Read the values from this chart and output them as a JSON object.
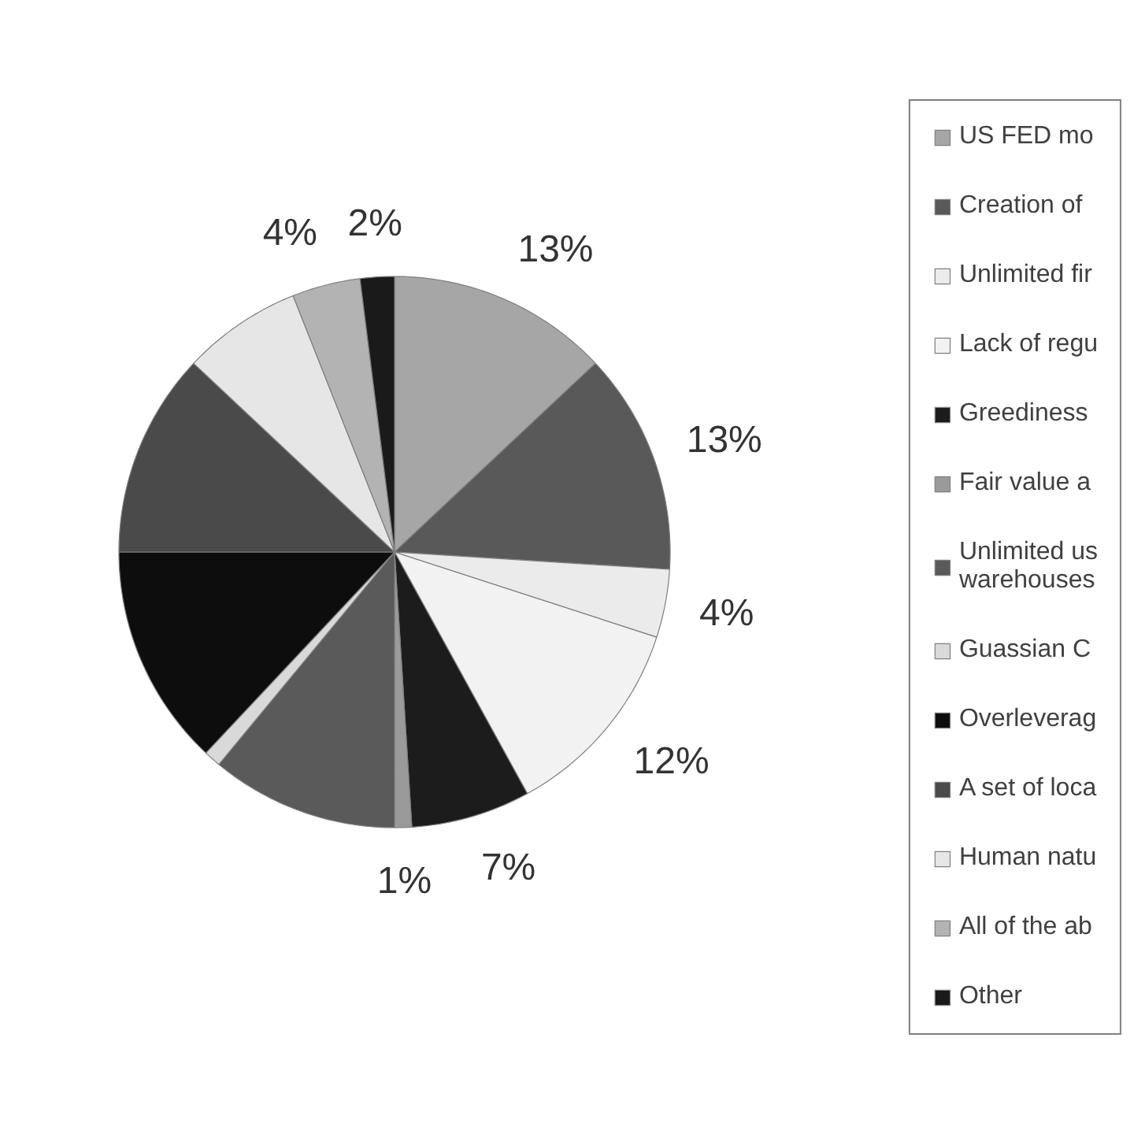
{
  "chart_data": {
    "type": "pie",
    "categories": [
      "US FED mo",
      "Creation of",
      "Unlimited fir",
      "Lack of regu",
      "Greediness",
      "Fair value a",
      "Unlimited us\nwarehouses",
      "Guassian C",
      "Overleverag",
      "A set of loca",
      "Human natu",
      "All of the ab",
      "Other"
    ],
    "values": [
      13,
      13,
      4,
      12,
      7,
      1,
      11,
      1,
      13,
      12,
      7,
      4,
      2
    ],
    "colors": [
      "#a6a6a6",
      "#595959",
      "#ebebeb",
      "#f2f2f2",
      "#1c1c1c",
      "#9a9a9a",
      "#5a5a5a",
      "#d9d9d9",
      "#0d0d0d",
      "#4a4a4a",
      "#e6e6e6",
      "#b3b3b3",
      "#1a1a1a"
    ],
    "value_labels": [
      "13%",
      "13%",
      "4%",
      "12%",
      "7%",
      "1%",
      null,
      null,
      null,
      null,
      null,
      "4%",
      "2%"
    ],
    "legend": "right"
  }
}
